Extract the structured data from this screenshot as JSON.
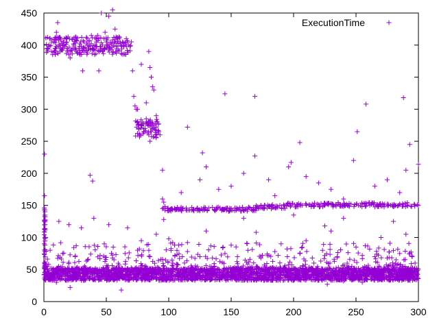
{
  "chart_data": {
    "type": "scatter",
    "title": "",
    "xlabel": "",
    "ylabel": "",
    "xlim": [
      0,
      300
    ],
    "ylim": [
      0,
      450
    ],
    "x_ticks": [
      "0",
      "50",
      "100",
      "150",
      "200",
      "250",
      "300"
    ],
    "y_ticks": [
      "0",
      "50",
      "100",
      "150",
      "200",
      "250",
      "300",
      "350",
      "400",
      "450"
    ],
    "grid": false,
    "legend_position": "top-right",
    "series": [
      {
        "name": "ExecutionTime",
        "marker": "plus",
        "color": "#9400d3",
        "points": [
          [
            0.5,
            230
          ],
          [
            0.5,
            165
          ],
          [
            0.8,
            140
          ],
          [
            1,
            120
          ],
          [
            1.2,
            100
          ],
          [
            0.3,
            90
          ],
          [
            3,
            395
          ],
          [
            4,
            400
          ],
          [
            5,
            410
          ],
          [
            6,
            390
          ],
          [
            7,
            385
          ],
          [
            8,
            405
          ],
          [
            9,
            395
          ],
          [
            10,
            420
          ],
          [
            11,
            435
          ],
          [
            12,
            400
          ],
          [
            13,
            390
          ],
          [
            14,
            392
          ],
          [
            15,
            395
          ],
          [
            16,
            400
          ],
          [
            17,
            398
          ],
          [
            18,
            410
          ],
          [
            19,
            390
          ],
          [
            20,
            385
          ],
          [
            21,
            380
          ],
          [
            22,
            392
          ],
          [
            23,
            395
          ],
          [
            24,
            400
          ],
          [
            25,
            393
          ],
          [
            26,
            390
          ],
          [
            27,
            388
          ],
          [
            28,
            395
          ],
          [
            29,
            385
          ],
          [
            30,
            398
          ],
          [
            31,
            392
          ],
          [
            32,
            405
          ],
          [
            33,
            396
          ],
          [
            34,
            391
          ],
          [
            35,
            388
          ],
          [
            36,
            394
          ],
          [
            37,
            399
          ],
          [
            38,
            402
          ],
          [
            39,
            395
          ],
          [
            40,
            392
          ],
          [
            41,
            400
          ],
          [
            42,
            405
          ],
          [
            43,
            415
          ],
          [
            44,
            410
          ],
          [
            45,
            398
          ],
          [
            46,
            394
          ],
          [
            47,
            400
          ],
          [
            48,
            410
          ],
          [
            49,
            420
          ],
          [
            50,
            405
          ],
          [
            51,
            398
          ],
          [
            52,
            400
          ],
          [
            53,
            395
          ],
          [
            54,
            402
          ],
          [
            55,
            408
          ],
          [
            56,
            412
          ],
          [
            57,
            404
          ],
          [
            58,
            398
          ],
          [
            59,
            406
          ],
          [
            60,
            410
          ],
          [
            61,
            402
          ],
          [
            62,
            399
          ],
          [
            63,
            405
          ],
          [
            64,
            398
          ],
          [
            65,
            402
          ],
          [
            66,
            410
          ],
          [
            67,
            405
          ],
          [
            68,
            400
          ],
          [
            69,
            398
          ],
          [
            70,
            405
          ],
          [
            31,
            360
          ],
          [
            38,
            415
          ],
          [
            44,
            360
          ],
          [
            46,
            450
          ],
          [
            52,
            445
          ],
          [
            55,
            455
          ],
          [
            57,
            425
          ],
          [
            72,
            320
          ],
          [
            73,
            305
          ],
          [
            74,
            300
          ],
          [
            75,
            280
          ],
          [
            76,
            270
          ],
          [
            77,
            260
          ],
          [
            78,
            275
          ],
          [
            79,
            280
          ],
          [
            80,
            265
          ],
          [
            81,
            270
          ],
          [
            82,
            285
          ],
          [
            83,
            275
          ],
          [
            84,
            260
          ],
          [
            85,
            250
          ],
          [
            86,
            265
          ],
          [
            87,
            270
          ],
          [
            88,
            275
          ],
          [
            89,
            268
          ],
          [
            90,
            272
          ],
          [
            91,
            280
          ],
          [
            92,
            265
          ],
          [
            93,
            260
          ],
          [
            75,
            300
          ],
          [
            78,
            370
          ],
          [
            84,
            390
          ],
          [
            85,
            365
          ],
          [
            86,
            350
          ],
          [
            87,
            335
          ],
          [
            88,
            330
          ],
          [
            82,
            310
          ],
          [
            90,
            290
          ],
          [
            71,
            360
          ],
          [
            95,
            205
          ],
          [
            95,
            160
          ],
          [
            96,
            155
          ],
          [
            97,
            148
          ],
          [
            99,
            145
          ],
          [
            102,
            145
          ],
          [
            105,
            143
          ],
          [
            108,
            144
          ],
          [
            111,
            145
          ],
          [
            114,
            146
          ],
          [
            117,
            143
          ],
          [
            120,
            144
          ],
          [
            123,
            146
          ],
          [
            126,
            145
          ],
          [
            129,
            144
          ],
          [
            132,
            146
          ],
          [
            135,
            147
          ],
          [
            138,
            145
          ],
          [
            141,
            146
          ],
          [
            144,
            144
          ],
          [
            147,
            146
          ],
          [
            150,
            145
          ],
          [
            153,
            146
          ],
          [
            156,
            144
          ],
          [
            159,
            147
          ],
          [
            162,
            145
          ],
          [
            165,
            146
          ],
          [
            168,
            147
          ],
          [
            171,
            148
          ],
          [
            174,
            149
          ],
          [
            177,
            150
          ],
          [
            180,
            148
          ],
          [
            183,
            150
          ],
          [
            186,
            149
          ],
          [
            189,
            150
          ],
          [
            192,
            151
          ],
          [
            195,
            152
          ],
          [
            198,
            150
          ],
          [
            201,
            151
          ],
          [
            204,
            153
          ],
          [
            207,
            150
          ],
          [
            210,
            152
          ],
          [
            213,
            151
          ],
          [
            216,
            150
          ],
          [
            219,
            152
          ],
          [
            222,
            153
          ],
          [
            225,
            150
          ],
          [
            228,
            151
          ],
          [
            231,
            152
          ],
          [
            234,
            150
          ],
          [
            237,
            149
          ],
          [
            240,
            151
          ],
          [
            243,
            150
          ],
          [
            246,
            152
          ],
          [
            249,
            151
          ],
          [
            252,
            150
          ],
          [
            255,
            152
          ],
          [
            258,
            149
          ],
          [
            261,
            150
          ],
          [
            264,
            151
          ],
          [
            267,
            150
          ],
          [
            270,
            149
          ],
          [
            273,
            152
          ],
          [
            276,
            150
          ],
          [
            279,
            151
          ],
          [
            282,
            150
          ],
          [
            285,
            152
          ],
          [
            288,
            151
          ],
          [
            291,
            150
          ],
          [
            294,
            149
          ],
          [
            297,
            151
          ],
          [
            300,
            150
          ],
          [
            115,
            272
          ],
          [
            127,
            232
          ],
          [
            130,
            210
          ],
          [
            145,
            324
          ],
          [
            169,
            320
          ],
          [
            169,
            227
          ],
          [
            198,
            217
          ],
          [
            205,
            248
          ],
          [
            248,
            220
          ],
          [
            251,
            265
          ],
          [
            258,
            308
          ],
          [
            288,
            318
          ],
          [
            293,
            245
          ],
          [
            300,
            214
          ],
          [
            290,
            205
          ],
          [
            196,
            210
          ],
          [
            160,
            200
          ],
          [
            180,
            190
          ],
          [
            230,
            175
          ],
          [
            265,
            180
          ],
          [
            275,
            190
          ],
          [
            285,
            170
          ],
          [
            240,
            160
          ],
          [
            220,
            185
          ],
          [
            110,
            170
          ],
          [
            125,
            190
          ],
          [
            140,
            175
          ],
          [
            150,
            180
          ],
          [
            185,
            165
          ],
          [
            210,
            195
          ],
          [
            37,
            197
          ],
          [
            39,
            188
          ],
          [
            30,
            115
          ],
          [
            20,
            120
          ],
          [
            12,
            125
          ],
          [
            52,
            120
          ],
          [
            40,
            130
          ],
          [
            67,
            115
          ],
          [
            78,
            95
          ],
          [
            90,
            105
          ],
          [
            100,
            98
          ],
          [
            115,
            92
          ],
          [
            130,
            110
          ],
          [
            150,
            88
          ],
          [
            170,
            108
          ],
          [
            190,
            90
          ],
          [
            210,
            95
          ],
          [
            230,
            110
          ],
          [
            250,
            85
          ],
          [
            270,
            100
          ],
          [
            290,
            105
          ],
          [
            96,
            128
          ],
          [
            160,
            130
          ],
          [
            200,
            135
          ],
          [
            240,
            130
          ],
          [
            280,
            125
          ],
          [
            225,
            118
          ],
          [
            21,
            22
          ],
          [
            62,
            18
          ],
          [
            227,
            27
          ],
          [
            255,
            30
          ],
          [
            240,
            32
          ],
          [
            10,
            30
          ],
          [
            5,
            80
          ],
          [
            15,
            75
          ],
          [
            25,
            70
          ],
          [
            35,
            65
          ],
          [
            45,
            72
          ],
          [
            55,
            68
          ],
          [
            65,
            75
          ],
          [
            75,
            80
          ],
          [
            85,
            70
          ],
          [
            95,
            66
          ],
          [
            105,
            72
          ],
          [
            115,
            78
          ],
          [
            125,
            70
          ],
          [
            135,
            68
          ],
          [
            145,
            75
          ],
          [
            155,
            70
          ],
          [
            165,
            66
          ],
          [
            175,
            72
          ],
          [
            185,
            78
          ],
          [
            195,
            70
          ],
          [
            205,
            75
          ],
          [
            215,
            68
          ],
          [
            225,
            72
          ],
          [
            235,
            70
          ],
          [
            245,
            66
          ],
          [
            255,
            72
          ],
          [
            265,
            70
          ],
          [
            275,
            68
          ],
          [
            285,
            75
          ],
          [
            295,
            70
          ]
        ]
      }
    ],
    "dense_band": {
      "x_range": [
        0,
        300
      ],
      "y_range": [
        33,
        52
      ],
      "description": "dense cloud of points across the full x range"
    }
  },
  "colors": {
    "series": "#9400d3",
    "axis": "#000000",
    "background": "#ffffff"
  }
}
